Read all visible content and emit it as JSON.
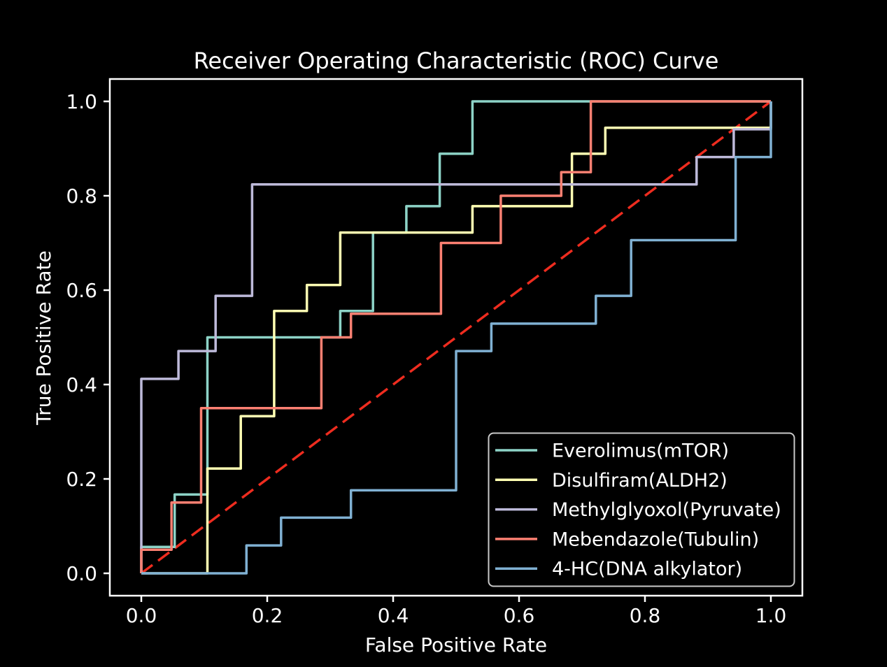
{
  "figure": {
    "background_color": "#000000",
    "foreground_color": "#ffffff"
  },
  "chart_data": {
    "type": "line",
    "subtype": "roc-step-curves",
    "title": "Receiver Operating Characteristic (ROC) Curve",
    "xlabel": "False Positive Rate",
    "ylabel": "True Positive Rate",
    "xlim": [
      -0.05,
      1.05
    ],
    "ylim": [
      -0.05,
      1.05
    ],
    "grid": false,
    "xticks": [
      0.0,
      0.2,
      0.4,
      0.6,
      0.8,
      1.0
    ],
    "xtick_labels": [
      "0.0",
      "0.2",
      "0.4",
      "0.6",
      "0.8",
      "1.0"
    ],
    "yticks": [
      0.0,
      0.2,
      0.4,
      0.6,
      0.8,
      1.0
    ],
    "ytick_labels": [
      "0.0",
      "0.2",
      "0.4",
      "0.6",
      "0.8",
      "1.0"
    ],
    "legend": {
      "position": "lower right",
      "border_color": "#c9c9c9",
      "text_color": "#ffffff"
    },
    "diagonal": {
      "name": "chance-line",
      "style": "dashed",
      "color": "#ee2c1f",
      "points": [
        [
          0,
          0
        ],
        [
          1,
          1
        ]
      ]
    },
    "series": [
      {
        "name": "Everolimus(mTOR)",
        "color": "#8dd3c7",
        "points": [
          [
            0,
            0
          ],
          [
            0,
            0.056
          ],
          [
            0.053,
            0.056
          ],
          [
            0.053,
            0.167
          ],
          [
            0.105,
            0.167
          ],
          [
            0.105,
            0.5
          ],
          [
            0.316,
            0.5
          ],
          [
            0.316,
            0.556
          ],
          [
            0.368,
            0.556
          ],
          [
            0.368,
            0.722
          ],
          [
            0.421,
            0.722
          ],
          [
            0.421,
            0.778
          ],
          [
            0.474,
            0.778
          ],
          [
            0.474,
            0.889
          ],
          [
            0.526,
            0.889
          ],
          [
            0.526,
            1.0
          ],
          [
            1.0,
            1.0
          ]
        ]
      },
      {
        "name": "Disulfiram(ALDH2)",
        "color": "#ffffb3",
        "points": [
          [
            0,
            0
          ],
          [
            0.105,
            0
          ],
          [
            0.105,
            0.222
          ],
          [
            0.158,
            0.222
          ],
          [
            0.158,
            0.333
          ],
          [
            0.211,
            0.333
          ],
          [
            0.211,
            0.556
          ],
          [
            0.263,
            0.556
          ],
          [
            0.263,
            0.611
          ],
          [
            0.316,
            0.611
          ],
          [
            0.316,
            0.722
          ],
          [
            0.526,
            0.722
          ],
          [
            0.526,
            0.778
          ],
          [
            0.684,
            0.778
          ],
          [
            0.684,
            0.889
          ],
          [
            0.737,
            0.889
          ],
          [
            0.737,
            0.944
          ],
          [
            1.0,
            0.944
          ],
          [
            1.0,
            1.0
          ]
        ]
      },
      {
        "name": "Methylglyoxol(Pyruvate)",
        "color": "#bebada",
        "points": [
          [
            0,
            0
          ],
          [
            0,
            0.412
          ],
          [
            0.059,
            0.412
          ],
          [
            0.059,
            0.471
          ],
          [
            0.118,
            0.471
          ],
          [
            0.118,
            0.588
          ],
          [
            0.176,
            0.588
          ],
          [
            0.176,
            0.824
          ],
          [
            0.882,
            0.824
          ],
          [
            0.882,
            0.882
          ],
          [
            0.941,
            0.882
          ],
          [
            0.941,
            0.941
          ],
          [
            1.0,
            0.941
          ],
          [
            1.0,
            1.0
          ]
        ]
      },
      {
        "name": "Mebendazole(Tubulin)",
        "color": "#fb8072",
        "points": [
          [
            0,
            0
          ],
          [
            0,
            0.05
          ],
          [
            0.048,
            0.05
          ],
          [
            0.048,
            0.15
          ],
          [
            0.095,
            0.15
          ],
          [
            0.095,
            0.35
          ],
          [
            0.286,
            0.35
          ],
          [
            0.286,
            0.5
          ],
          [
            0.333,
            0.5
          ],
          [
            0.333,
            0.55
          ],
          [
            0.476,
            0.55
          ],
          [
            0.476,
            0.7
          ],
          [
            0.571,
            0.7
          ],
          [
            0.571,
            0.8
          ],
          [
            0.667,
            0.8
          ],
          [
            0.667,
            0.85
          ],
          [
            0.714,
            0.85
          ],
          [
            0.714,
            1.0
          ],
          [
            1.0,
            1.0
          ]
        ]
      },
      {
        "name": "4-HC(DNA alkylator)",
        "color": "#80b1d3",
        "points": [
          [
            0,
            0
          ],
          [
            0.167,
            0
          ],
          [
            0.167,
            0.059
          ],
          [
            0.222,
            0.059
          ],
          [
            0.222,
            0.118
          ],
          [
            0.333,
            0.118
          ],
          [
            0.333,
            0.176
          ],
          [
            0.5,
            0.176
          ],
          [
            0.5,
            0.471
          ],
          [
            0.556,
            0.471
          ],
          [
            0.556,
            0.529
          ],
          [
            0.722,
            0.529
          ],
          [
            0.722,
            0.588
          ],
          [
            0.778,
            0.588
          ],
          [
            0.778,
            0.706
          ],
          [
            0.944,
            0.706
          ],
          [
            0.944,
            0.882
          ],
          [
            1.0,
            0.882
          ],
          [
            1.0,
            1.0
          ]
        ]
      }
    ]
  }
}
